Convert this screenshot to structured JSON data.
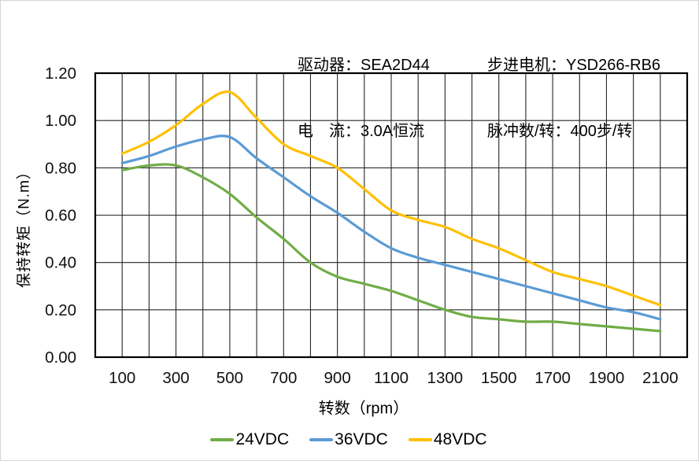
{
  "chart_data": {
    "type": "line",
    "annotations": {
      "driver_label": "驱动器：SEA2D44",
      "current_label": "电　流：3.0A恒流",
      "motor_label": "步进电机：YSD266-RB6",
      "pulses_label": "脉冲数/转：400步/转"
    },
    "title": "",
    "xlabel": "转数（rpm）",
    "ylabel": "保持转矩（N.m）",
    "xlim": [
      0,
      2200
    ],
    "ylim": [
      0,
      1.2
    ],
    "x_grid_step": 100,
    "y_grid_step": 0.2,
    "grid": true,
    "legend_position": "bottom",
    "x_tick_values": [
      100,
      300,
      500,
      700,
      900,
      1100,
      1300,
      1500,
      1700,
      1900,
      2100
    ],
    "x_tick_labels": [
      "100",
      "300",
      "500",
      "700",
      "900",
      "1100",
      "1300",
      "1500",
      "1700",
      "1900",
      "2100"
    ],
    "y_tick_values": [
      0,
      0.2,
      0.4,
      0.6,
      0.8,
      1.0,
      1.2
    ],
    "y_tick_labels": [
      "0.00",
      "0.20",
      "0.40",
      "0.60",
      "0.80",
      "1.00",
      "1.20"
    ],
    "x": [
      100,
      200,
      300,
      400,
      500,
      600,
      700,
      800,
      900,
      1000,
      1100,
      1200,
      1300,
      1400,
      1500,
      1600,
      1700,
      1800,
      1900,
      2000,
      2100
    ],
    "series": [
      {
        "name": "24VDC",
        "color": "#70AD47",
        "values": [
          0.79,
          0.81,
          0.81,
          0.76,
          0.69,
          0.59,
          0.5,
          0.4,
          0.34,
          0.31,
          0.28,
          0.24,
          0.2,
          0.17,
          0.16,
          0.15,
          0.15,
          0.14,
          0.13,
          0.12,
          0.11
        ]
      },
      {
        "name": "36VDC",
        "color": "#5B9BD5",
        "values": [
          0.82,
          0.85,
          0.89,
          0.92,
          0.93,
          0.84,
          0.76,
          0.68,
          0.61,
          0.53,
          0.46,
          0.42,
          0.39,
          0.36,
          0.33,
          0.3,
          0.27,
          0.24,
          0.21,
          0.19,
          0.16
        ]
      },
      {
        "name": "48VDC",
        "color": "#FFC000",
        "values": [
          0.86,
          0.91,
          0.98,
          1.07,
          1.12,
          1.01,
          0.9,
          0.85,
          0.8,
          0.71,
          0.62,
          0.58,
          0.55,
          0.5,
          0.46,
          0.41,
          0.36,
          0.33,
          0.3,
          0.26,
          0.22
        ]
      }
    ]
  },
  "colors": {
    "background": "#ffffff",
    "grid": "#262626",
    "frame": "#000000",
    "text": "#000000"
  }
}
